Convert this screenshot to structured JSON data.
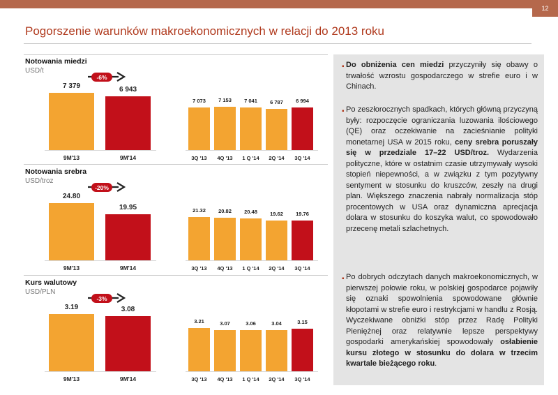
{
  "header": {
    "page_number": "12"
  },
  "title": "Pogorszenie warunków makroekonomicznych w relacji do 2013 roku",
  "colors": {
    "accent": "#b5684c",
    "orange": "#f3a431",
    "red": "#c2101a"
  },
  "panels": [
    {
      "title": "Notowania miedzi",
      "unit": "USD/t",
      "change": "-6%",
      "annual": {
        "categories": [
          "9M'13",
          "9M'14"
        ],
        "labels": [
          "7 379",
          "6 943"
        ],
        "values": [
          7379,
          6943
        ]
      },
      "quarterly": {
        "categories": [
          "3Q '13",
          "4Q '13",
          "1 Q '14",
          "2Q '14",
          "3Q '14"
        ],
        "labels": [
          "7 073",
          "7 153",
          "7 041",
          "6 787",
          "6 994"
        ],
        "values": [
          7073,
          7153,
          7041,
          6787,
          6994
        ]
      }
    },
    {
      "title": "Notowania srebra",
      "unit": "USD/troz",
      "change": "-20%",
      "annual": {
        "categories": [
          "9M'13",
          "9M'14"
        ],
        "labels": [
          "24.80",
          "19.95"
        ],
        "values": [
          24.8,
          19.95
        ]
      },
      "quarterly": {
        "categories": [
          "3Q '13",
          "4Q '13",
          "1 Q '14",
          "2Q '14",
          "3Q '14"
        ],
        "labels": [
          "21.32",
          "20.82",
          "20.48",
          "19.62",
          "19.76"
        ],
        "values": [
          21.32,
          20.82,
          20.48,
          19.62,
          19.76
        ]
      }
    },
    {
      "title": "Kurs walutowy",
      "unit": "USD/PLN",
      "change": "-3%",
      "annual": {
        "categories": [
          "9M'13",
          "9M'14"
        ],
        "labels": [
          "3.19",
          "3.08"
        ],
        "values": [
          3.19,
          3.08
        ]
      },
      "quarterly": {
        "categories": [
          "3Q '13",
          "4Q '13",
          "1 Q '14",
          "2Q '14",
          "3Q '14"
        ],
        "labels": [
          "3.21",
          "3.07",
          "3.06",
          "3.04",
          "3.15"
        ],
        "values": [
          3.21,
          3.07,
          3.06,
          3.04,
          3.15
        ]
      }
    }
  ],
  "chart_data": [
    {
      "type": "bar",
      "title": "Notowania miedzi",
      "ylabel": "USD/t",
      "categories": [
        "9M'13",
        "9M'14"
      ],
      "values": [
        7379,
        6943
      ]
    },
    {
      "type": "bar",
      "title": "Notowania miedzi",
      "ylabel": "USD/t",
      "categories": [
        "3Q '13",
        "4Q '13",
        "1 Q '14",
        "2Q '14",
        "3Q '14"
      ],
      "values": [
        7073,
        7153,
        7041,
        6787,
        6994
      ]
    },
    {
      "type": "bar",
      "title": "Notowania srebra",
      "ylabel": "USD/troz",
      "categories": [
        "9M'13",
        "9M'14"
      ],
      "values": [
        24.8,
        19.95
      ]
    },
    {
      "type": "bar",
      "title": "Notowania srebra",
      "ylabel": "USD/troz",
      "categories": [
        "3Q '13",
        "4Q '13",
        "1 Q '14",
        "2Q '14",
        "3Q '14"
      ],
      "values": [
        21.32,
        20.82,
        20.48,
        19.62,
        19.76
      ]
    },
    {
      "type": "bar",
      "title": "Kurs walutowy",
      "ylabel": "USD/PLN",
      "categories": [
        "9M'13",
        "9M'14"
      ],
      "values": [
        3.19,
        3.08
      ]
    },
    {
      "type": "bar",
      "title": "Kurs walutowy",
      "ylabel": "USD/PLN",
      "categories": [
        "3Q '13",
        "4Q '13",
        "1 Q '14",
        "2Q '14",
        "3Q '14"
      ],
      "values": [
        3.21,
        3.07,
        3.06,
        3.04,
        3.15
      ]
    }
  ],
  "commentary": {
    "paragraphs": [
      [
        {
          "t": "Do obniżenia cen miedzi",
          "b": true
        },
        {
          "t": " przyczyniły się obawy o trwałość wzrostu gospodarczego w strefie euro i w Chinach.",
          "b": false
        }
      ],
      [
        {
          "t": "Po zeszłorocznych spadkach, których główną przyczyną były: rozpoczęcie ograniczania luzowania ilościowego (QE) oraz oczekiwanie na zacieśnianie polityki monetarnej USA w 2015 roku, ",
          "b": false
        },
        {
          "t": "ceny srebra poruszały się w przedziale 17–22 USD/troz.",
          "b": true
        },
        {
          "t": " Wydarzenia polityczne, które w ostatnim czasie utrzymywały wysoki stopień niepewności, a w związku z tym pozytywny sentyment w stosunku do kruszców, zeszły na drugi plan. Większego znaczenia nabrały normalizacja stóp procentowych w USA oraz dynamiczna aprecjacja dolara w stosunku do koszyka walut, co spowodowało przecenę metali szlachetnych.",
          "b": false
        }
      ],
      [
        {
          "t": "Po dobrych odczytach danych makroekonomicznych, w pierwszej połowie roku, w polskiej gospodarce pojawiły się oznaki spowolnienia spowodowane głównie kłopotami w strefie euro i restrykcjami w handlu z Rosją. Wyczekiwane obniżki stóp przez Radę Polityki Pieniężnej oraz relatywnie lepsze perspektywy gospodarki amerykańskiej spowodowały ",
          "b": false
        },
        {
          "t": "osłabienie kursu złotego w stosunku do dolara w trzecim kwartale bieżącego roku",
          "b": true
        },
        {
          "t": ".",
          "b": false
        }
      ]
    ]
  }
}
